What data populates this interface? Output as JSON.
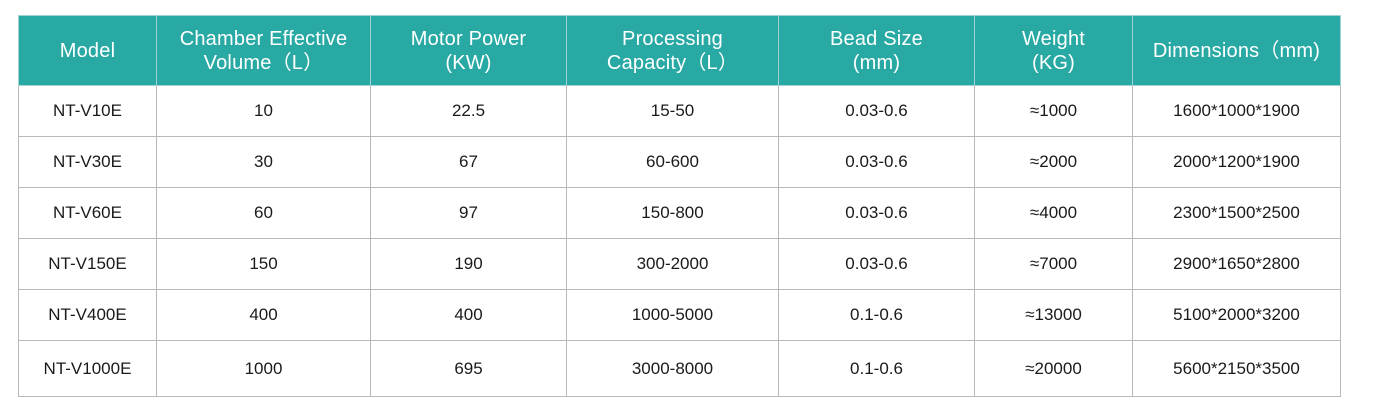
{
  "table": {
    "headers": [
      {
        "line1": "Model",
        "line2": ""
      },
      {
        "line1": "Chamber Effective",
        "line2": "Volume（L）"
      },
      {
        "line1": "Motor Power",
        "line2": "(KW)"
      },
      {
        "line1": "Processing",
        "line2": "Capacity（L）"
      },
      {
        "line1": "Bead Size",
        "line2": "(mm)"
      },
      {
        "line1": "Weight",
        "line2": "(KG)"
      },
      {
        "line1": "Dimensions（mm)",
        "line2": ""
      }
    ],
    "rows": [
      [
        "NT-V10E",
        "10",
        "22.5",
        "15-50",
        "0.03-0.6",
        "≈1000",
        "1600*1000*1900"
      ],
      [
        "NT-V30E",
        "30",
        "67",
        "60-600",
        "0.03-0.6",
        "≈2000",
        "2000*1200*1900"
      ],
      [
        "NT-V60E",
        "60",
        "97",
        "150-800",
        "0.03-0.6",
        "≈4000",
        "2300*1500*2500"
      ],
      [
        "NT-V150E",
        "150",
        "190",
        "300-2000",
        "0.03-0.6",
        "≈7000",
        "2900*1650*2800"
      ],
      [
        "NT-V400E",
        "400",
        "400",
        "1000-5000",
        "0.1-0.6",
        "≈13000",
        "5100*2000*3200"
      ],
      [
        "NT-V1000E",
        "1000",
        "695",
        "3000-8000",
        "0.1-0.6",
        "≈20000",
        "5600*2150*3500"
      ]
    ]
  },
  "colors": {
    "header_bg": "#28a9a4",
    "header_text": "#ffffff",
    "border": "#b8b8b8",
    "cell_text": "#1a1a1a"
  }
}
